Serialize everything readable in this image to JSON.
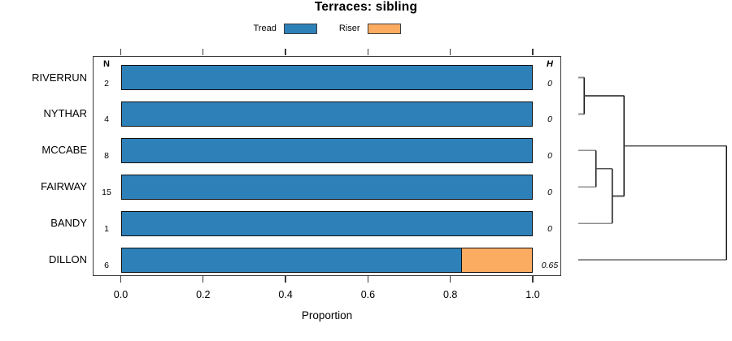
{
  "chart_data": {
    "type": "bar",
    "orientation": "horizontal-stacked",
    "title": "Terraces: sibling",
    "categories": [
      "RIVERRUN",
      "NYTHAR",
      "MCCABE",
      "FAIRWAY",
      "BANDY",
      "DILLON"
    ],
    "columns": {
      "n_header": "N",
      "h_header": "H"
    },
    "n_values": [
      "2",
      "4",
      "8",
      "15",
      "1",
      "6"
    ],
    "h_values": [
      "0",
      "0",
      "0",
      "0",
      "0",
      "0.65"
    ],
    "series": [
      {
        "name": "Tread",
        "color": "#2E80B9",
        "values": [
          1.0,
          1.0,
          1.0,
          1.0,
          1.0,
          0.83
        ]
      },
      {
        "name": "Riser",
        "color": "#FBAC61",
        "values": [
          0,
          0,
          0,
          0,
          0,
          0.17
        ]
      }
    ],
    "xlabel": "Proportion",
    "xticks": [
      "0.0",
      "0.2",
      "0.4",
      "0.6",
      "0.8",
      "1.0"
    ],
    "xlim": [
      0.0,
      1.0
    ],
    "grid": false,
    "legend_position": "top-center",
    "dendrogram": {
      "side": "right",
      "leaf_order": [
        "RIVERRUN",
        "NYTHAR",
        "MCCABE",
        "FAIRWAY",
        "BANDY",
        "DILLON"
      ],
      "merges": [
        {
          "children": [
            "L0",
            "L1"
          ],
          "height": 0.04
        },
        {
          "children": [
            "L2",
            "L3"
          ],
          "height": 0.12
        },
        {
          "children": [
            "M1",
            "L4"
          ],
          "height": 0.23
        },
        {
          "children": [
            "M0",
            "M2"
          ],
          "height": 0.31
        },
        {
          "children": [
            "M3",
            "L5"
          ],
          "height": 1.0
        }
      ]
    },
    "colors": {
      "tread": "#2E80B9",
      "riser": "#FBAC61",
      "bar_border": "#101010",
      "axis": "#3a3a3a",
      "dendro_leaf_line": "#8f8f8f",
      "dendro_inner_line": "#555555",
      "dendro_vertical_line": "#161616"
    }
  }
}
